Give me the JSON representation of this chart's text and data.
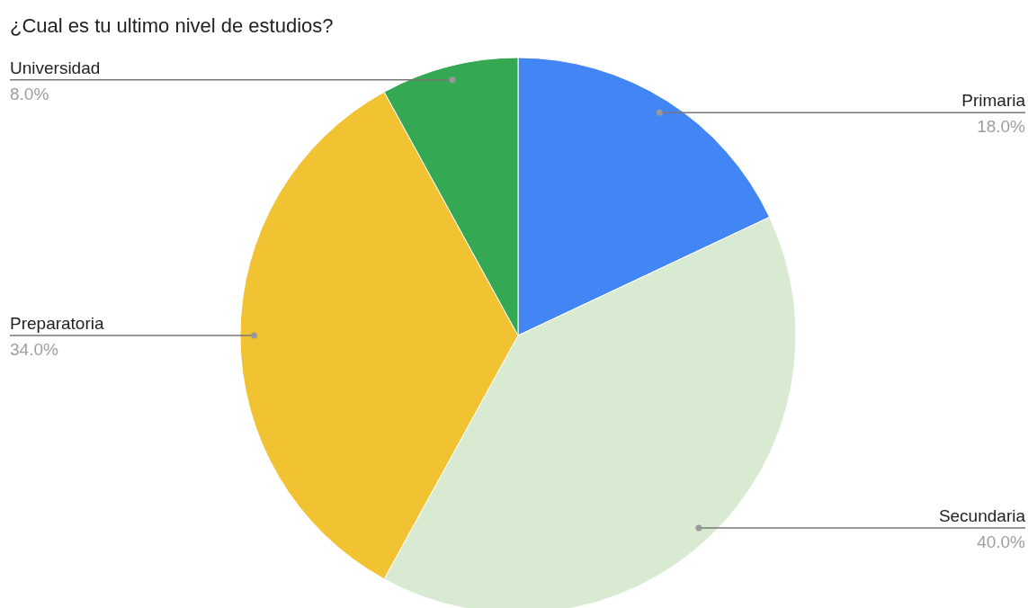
{
  "chart_data": {
    "type": "pie",
    "title": "¿Cual es tu ultimo nivel de estudios?",
    "categories": [
      "Primaria",
      "Secundaria",
      "Preparatoria",
      "Universidad"
    ],
    "values": [
      18,
      40,
      34,
      8
    ],
    "colors": [
      "#4285f4",
      "#d9ead3",
      "#f1c232",
      "#34a853"
    ],
    "value_labels": [
      "18.0%",
      "40.0%",
      "34.0%",
      "8.0%"
    ],
    "legend": false
  }
}
